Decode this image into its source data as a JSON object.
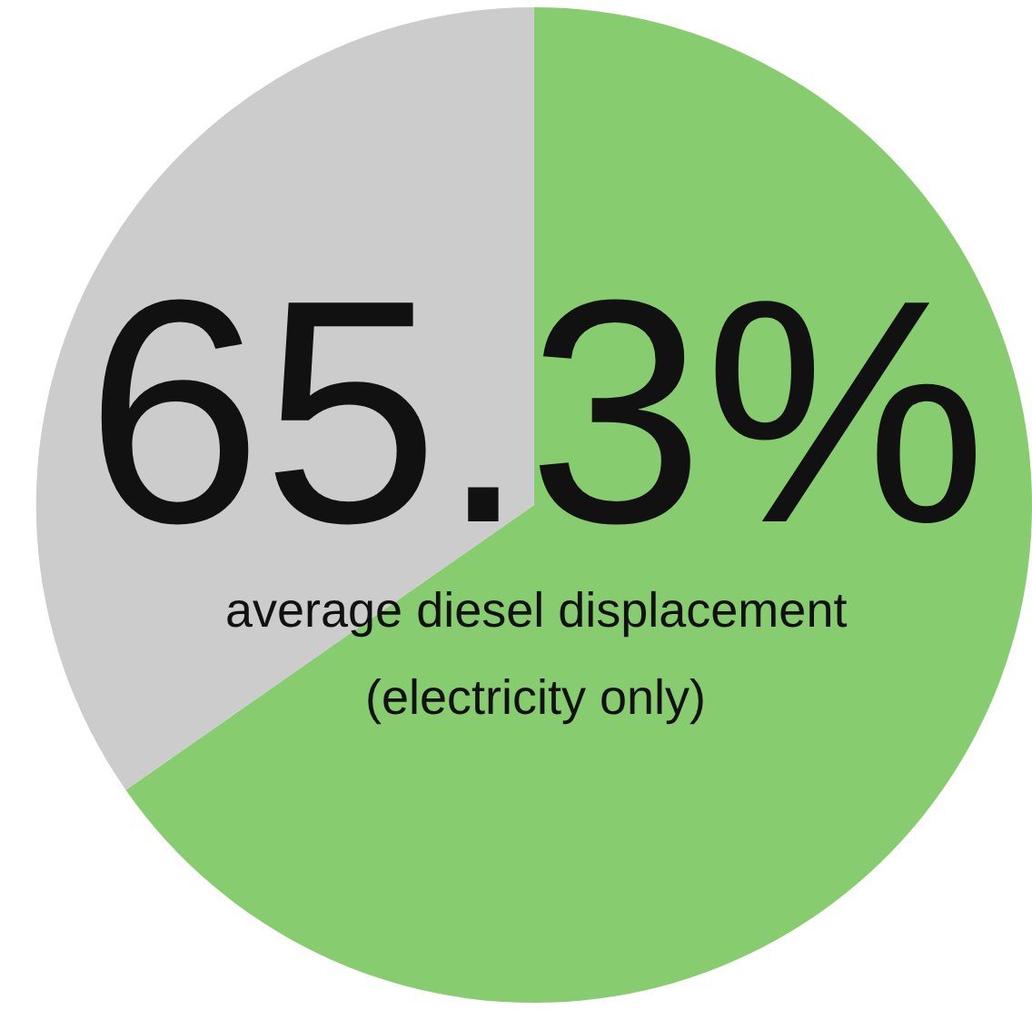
{
  "chart_data": {
    "type": "pie",
    "categories": [
      null,
      null
    ],
    "values": [
      65.3,
      34.7
    ],
    "colors": [
      "#88cc70",
      "#cccccc"
    ],
    "annotations": [
      "65.3%",
      "average diesel displacement",
      "(electricity only)"
    ],
    "legend": false
  }
}
